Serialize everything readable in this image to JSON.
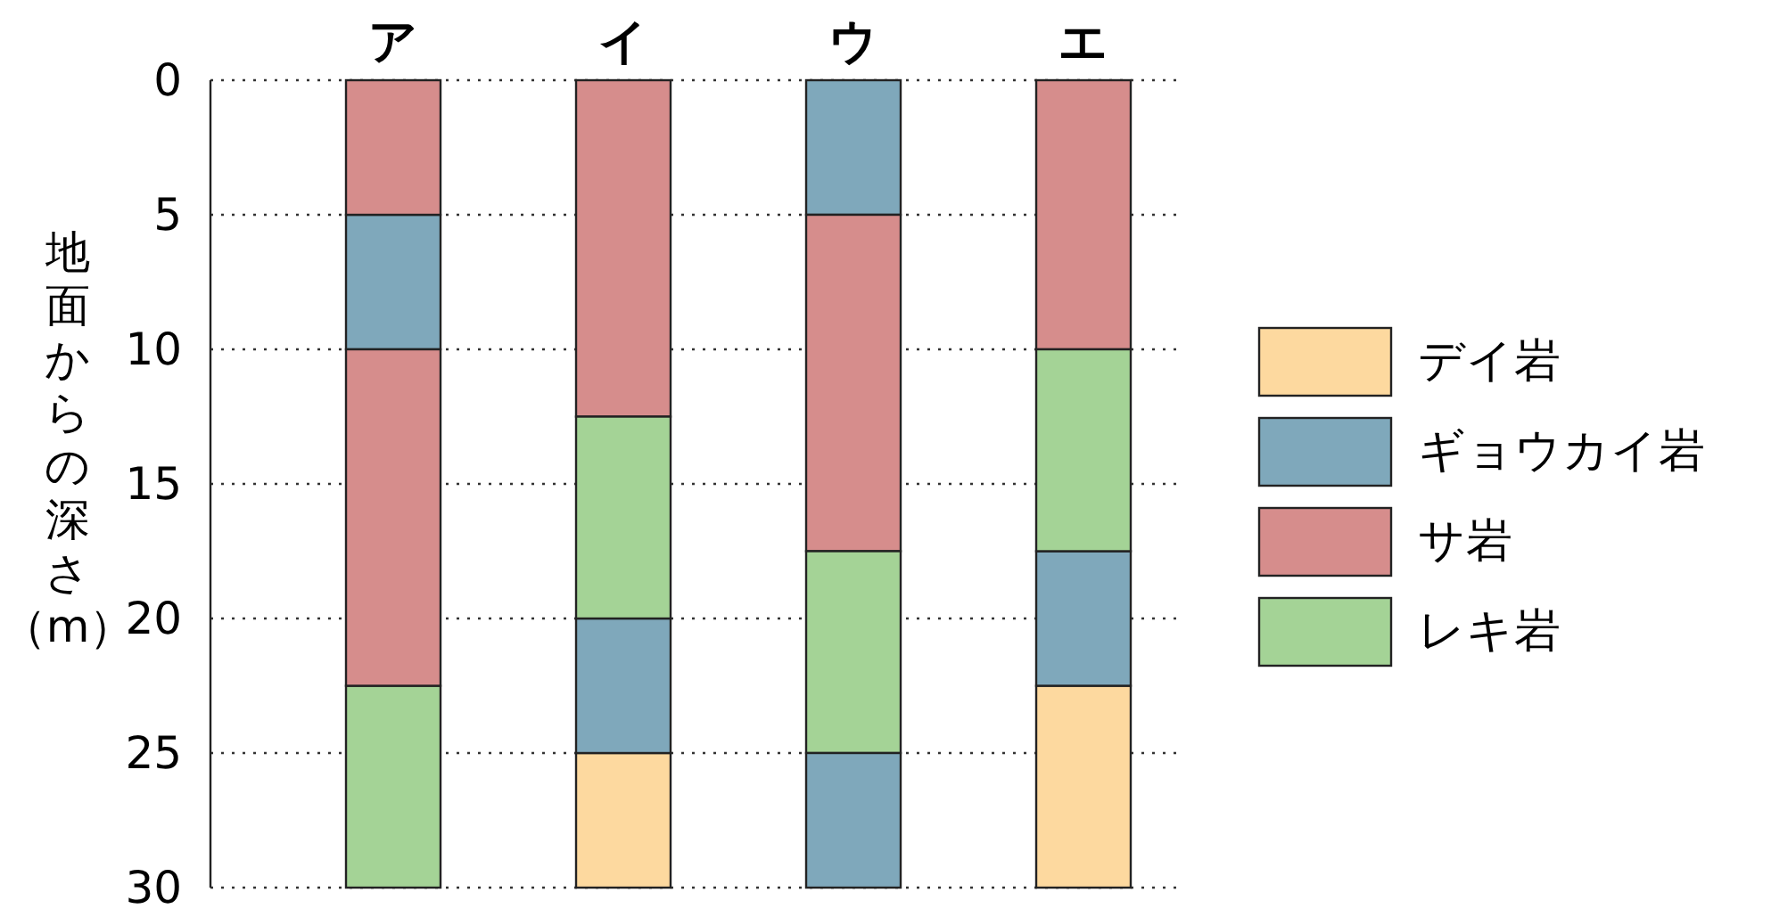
{
  "chart_data": {
    "type": "bar",
    "ylabel": "地面からの深さ（m）",
    "categories": [
      "ア",
      "イ",
      "ウ",
      "エ"
    ],
    "series": [
      {
        "name": "デイ岩",
        "color": "#fdd99f",
        "base": [
          null,
          25,
          null,
          22.5
        ],
        "values": [
          null,
          5,
          null,
          7.5
        ]
      },
      {
        "name": "ギョウカイ岩",
        "color": "#7fa8bb",
        "base": [
          5,
          20,
          0,
          17.5
        ],
        "values": [
          5,
          5,
          5,
          5
        ]
      },
      {
        "name": "サ岩",
        "color": "#d68d8c",
        "base": [
          0,
          0,
          5,
          0
        ],
        "values": [
          5,
          12.5,
          12.5,
          10
        ]
      },
      {
        "name": "レキ岩",
        "color": "#a4d396",
        "base": [
          22.5,
          12.5,
          17.5,
          10
        ],
        "values": [
          7.5,
          7.5,
          7.5,
          7.5
        ]
      },
      {
        "color": "#d68d8c",
        "base": [
          10,
          null,
          null,
          null
        ],
        "values": [
          12.5,
          null,
          null,
          null
        ]
      },
      {
        "color": "#7fa8bb",
        "base": [
          null,
          null,
          25,
          null
        ],
        "values": [
          null,
          null,
          5,
          null
        ]
      }
    ],
    "ylim": [
      30,
      0
    ],
    "yticks": [
      0,
      5,
      10,
      15,
      20,
      25,
      30
    ],
    "grid": "y",
    "legend": "right"
  }
}
